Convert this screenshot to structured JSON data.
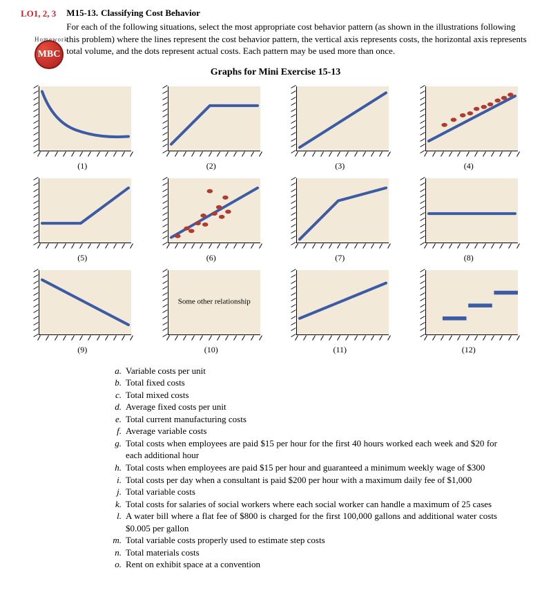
{
  "header": {
    "lo": "LO1, 2, 3",
    "exercise_code": "M15-13.",
    "exercise_title": "Classifying Cost Behavior",
    "intro": "For each of the following situations, select the most appropriate cost behavior pattern (as shown in the illustrations following this problem) where the lines represent the cost behavior pattern, the vertical axis represents costs, the horizontal axis represents total volume, and the dots represent actual costs. Each pattern may be used more than once."
  },
  "badge": {
    "arc": "Homework",
    "text": "MBC"
  },
  "graphs_title": "Graphs for Mini Exercise 15-13",
  "panel_style": {
    "bg": "#f2e9d8",
    "line_color": "#3b5ba5",
    "dot_color": "#b03a2e",
    "tick_count": 12
  },
  "panels": [
    {
      "id": "(1)",
      "type": "curve_decreasing"
    },
    {
      "id": "(2)",
      "type": "rise_then_flat"
    },
    {
      "id": "(3)",
      "type": "diag_origin"
    },
    {
      "id": "(4)",
      "type": "diag_with_dots_above"
    },
    {
      "id": "(5)",
      "type": "flat_then_rise"
    },
    {
      "id": "(6)",
      "type": "diag_with_dots_scatter"
    },
    {
      "id": "(7)",
      "type": "steep_then_gentle"
    },
    {
      "id": "(8)",
      "type": "flat_mid"
    },
    {
      "id": "(9)",
      "type": "diag_down"
    },
    {
      "id": "(10)",
      "type": "text",
      "text": "Some other relationship"
    },
    {
      "id": "(11)",
      "type": "mixed_line"
    },
    {
      "id": "(12)",
      "type": "steps"
    }
  ],
  "items": [
    {
      "l": "a.",
      "t": "Variable costs per unit"
    },
    {
      "l": "b.",
      "t": "Total fixed costs"
    },
    {
      "l": "c.",
      "t": "Total mixed costs"
    },
    {
      "l": "d.",
      "t": "Average fixed costs per unit"
    },
    {
      "l": "e.",
      "t": "Total current manufacturing costs"
    },
    {
      "l": "f.",
      "t": "Average variable costs"
    },
    {
      "l": "g.",
      "t": "Total costs when employees are paid $15 per hour for the first 40 hours worked each week and $20 for each additional hour"
    },
    {
      "l": "h.",
      "t": "Total costs when employees are paid $15 per hour and guaranteed a minimum weekly wage of $300"
    },
    {
      "l": "i.",
      "t": "Total costs per day when a consultant is paid $200 per hour with a maximum daily fee of $1,000"
    },
    {
      "l": "j.",
      "t": "Total variable costs"
    },
    {
      "l": "k.",
      "t": "Total costs for salaries of social workers where each social worker can handle a maximum of 25 cases"
    },
    {
      "l": "l.",
      "t": "A water bill where a flat fee of $800 is charged for the first 100,000 gallons and additional water costs $0.005 per gallon"
    },
    {
      "l": "m.",
      "t": "Total variable costs properly used to estimate step costs"
    },
    {
      "l": "n.",
      "t": "Total materials costs"
    },
    {
      "l": "o.",
      "t": "Rent on exhibit space at a convention"
    }
  ]
}
